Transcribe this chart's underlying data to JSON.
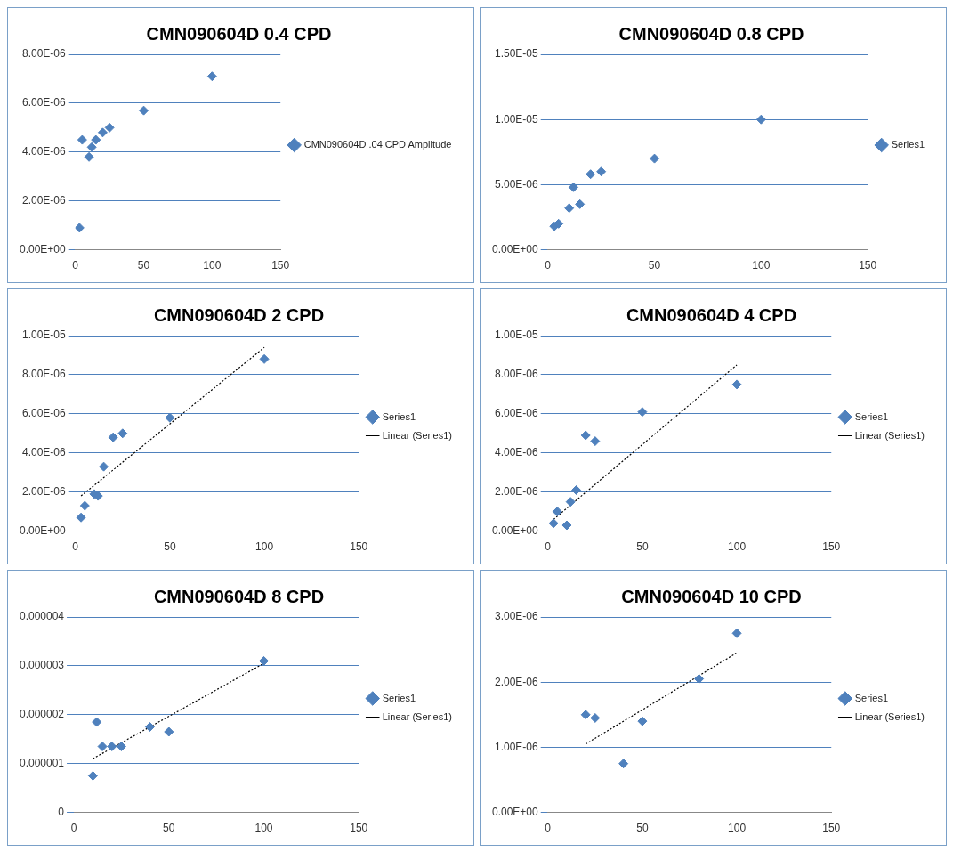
{
  "chart_data": [
    {
      "type": "scatter",
      "title": "CMN090604D 0.4 CPD",
      "marker": "diamond",
      "grid": "y",
      "legend": "right",
      "xlim": [
        0,
        150
      ],
      "xticks": [
        0,
        50,
        100,
        150
      ],
      "ylim": [
        0,
        8e-06
      ],
      "yticks": [
        {
          "value": 0,
          "label": "0.00E+00"
        },
        {
          "value": 2e-06,
          "label": "2.00E-06"
        },
        {
          "value": 4e-06,
          "label": "4.00E-06"
        },
        {
          "value": 6e-06,
          "label": "6.00E-06"
        },
        {
          "value": 8e-06,
          "label": "8.00E-06"
        }
      ],
      "series": [
        {
          "name": "CMN090604D .04 CPD Amplitude",
          "color": "#4f81bd",
          "x": [
            3,
            5,
            10,
            12,
            15,
            20,
            25,
            50,
            100
          ],
          "values": [
            9e-07,
            4.5e-06,
            3.8e-06,
            4.2e-06,
            4.5e-06,
            4.8e-06,
            5e-06,
            5.7e-06,
            7.1e-06
          ]
        }
      ]
    },
    {
      "type": "scatter",
      "title": "CMN090604D 0.8 CPD",
      "marker": "diamond",
      "grid": "y",
      "legend": "right",
      "xlim": [
        0,
        150
      ],
      "xticks": [
        0,
        50,
        100,
        150
      ],
      "ylim": [
        0,
        1.5e-05
      ],
      "yticks": [
        {
          "value": 0,
          "label": "0.00E+00"
        },
        {
          "value": 5e-06,
          "label": "5.00E-06"
        },
        {
          "value": 1e-05,
          "label": "1.00E-05"
        },
        {
          "value": 1.5e-05,
          "label": "1.50E-05"
        }
      ],
      "series": [
        {
          "name": "Series1",
          "color": "#4f81bd",
          "x": [
            3,
            5,
            10,
            12,
            15,
            20,
            25,
            50,
            100
          ],
          "values": [
            1.8e-06,
            2e-06,
            3.2e-06,
            4.8e-06,
            3.5e-06,
            5.8e-06,
            6e-06,
            7e-06,
            1e-05
          ]
        }
      ]
    },
    {
      "type": "scatter",
      "title": "CMN090604D 2 CPD",
      "marker": "diamond",
      "grid": "y",
      "legend": "right",
      "xlim": [
        0,
        150
      ],
      "xticks": [
        0,
        50,
        100,
        150
      ],
      "ylim": [
        0,
        1e-05
      ],
      "yticks": [
        {
          "value": 0,
          "label": "0.00E+00"
        },
        {
          "value": 2e-06,
          "label": "2.00E-06"
        },
        {
          "value": 4e-06,
          "label": "4.00E-06"
        },
        {
          "value": 6e-06,
          "label": "6.00E-06"
        },
        {
          "value": 8e-06,
          "label": "8.00E-06"
        },
        {
          "value": 1e-05,
          "label": "1.00E-05"
        }
      ],
      "series": [
        {
          "name": "Series1",
          "color": "#4f81bd",
          "x": [
            3,
            5,
            10,
            12,
            15,
            20,
            25,
            50,
            100
          ],
          "values": [
            7e-07,
            1.3e-06,
            1.9e-06,
            1.8e-06,
            3.3e-06,
            4.8e-06,
            5e-06,
            5.8e-06,
            8.8e-06
          ]
        },
        {
          "name": "Linear (Series1)",
          "type": "line",
          "marker": "none",
          "line_style": "dotted",
          "color": "#000000",
          "x": [
            3,
            100
          ],
          "values": [
            1.8e-06,
            9.4e-06
          ]
        }
      ]
    },
    {
      "type": "scatter",
      "title": "CMN090604D 4 CPD",
      "marker": "diamond",
      "grid": "y",
      "legend": "right",
      "xlim": [
        0,
        150
      ],
      "xticks": [
        0,
        50,
        100,
        150
      ],
      "ylim": [
        0,
        1e-05
      ],
      "yticks": [
        {
          "value": 0,
          "label": "0.00E+00"
        },
        {
          "value": 2e-06,
          "label": "2.00E-06"
        },
        {
          "value": 4e-06,
          "label": "4.00E-06"
        },
        {
          "value": 6e-06,
          "label": "6.00E-06"
        },
        {
          "value": 8e-06,
          "label": "8.00E-06"
        },
        {
          "value": 1e-05,
          "label": "1.00E-05"
        }
      ],
      "series": [
        {
          "name": "Series1",
          "color": "#4f81bd",
          "x": [
            3,
            5,
            10,
            12,
            15,
            20,
            25,
            50,
            100
          ],
          "values": [
            4e-07,
            1e-06,
            3e-07,
            1.5e-06,
            2.1e-06,
            4.9e-06,
            4.6e-06,
            6.1e-06,
            7.5e-06
          ]
        },
        {
          "name": "Linear (Series1)",
          "type": "line",
          "marker": "none",
          "line_style": "dotted",
          "color": "#000000",
          "x": [
            3,
            100
          ],
          "values": [
            6e-07,
            8.5e-06
          ]
        }
      ]
    },
    {
      "type": "scatter",
      "title": "CMN090604D 8 CPD",
      "marker": "diamond",
      "grid": "y",
      "legend": "right",
      "xlim": [
        0,
        150
      ],
      "xticks": [
        0,
        50,
        100,
        150
      ],
      "ylim": [
        0,
        4e-06
      ],
      "yticks": [
        {
          "value": 0,
          "label": "0"
        },
        {
          "value": 1e-06,
          "label": "0.000001"
        },
        {
          "value": 2e-06,
          "label": "0.000002"
        },
        {
          "value": 3e-06,
          "label": "0.000003"
        },
        {
          "value": 4e-06,
          "label": "0.000004"
        }
      ],
      "series": [
        {
          "name": "Series1",
          "color": "#4f81bd",
          "x": [
            10,
            12,
            15,
            20,
            25,
            40,
            50,
            100
          ],
          "values": [
            7.5e-07,
            1.85e-06,
            1.35e-06,
            1.35e-06,
            1.35e-06,
            1.75e-06,
            1.65e-06,
            3.1e-06
          ]
        },
        {
          "name": "Linear (Series1)",
          "type": "line",
          "marker": "none",
          "line_style": "dotted",
          "color": "#000000",
          "x": [
            10,
            100
          ],
          "values": [
            1.1e-06,
            3.05e-06
          ]
        }
      ]
    },
    {
      "type": "scatter",
      "title": "CMN090604D 10 CPD",
      "marker": "diamond",
      "grid": "y",
      "legend": "right",
      "xlim": [
        0,
        150
      ],
      "xticks": [
        0,
        50,
        100,
        150
      ],
      "ylim": [
        0,
        3e-06
      ],
      "yticks": [
        {
          "value": 0,
          "label": "0.00E+00"
        },
        {
          "value": 1e-06,
          "label": "1.00E-06"
        },
        {
          "value": 2e-06,
          "label": "2.00E-06"
        },
        {
          "value": 3e-06,
          "label": "3.00E-06"
        }
      ],
      "series": [
        {
          "name": "Series1",
          "color": "#4f81bd",
          "x": [
            20,
            25,
            40,
            50,
            80,
            100
          ],
          "values": [
            1.5e-06,
            1.45e-06,
            7.5e-07,
            1.4e-06,
            2.05e-06,
            2.75e-06
          ]
        },
        {
          "name": "Linear (Series1)",
          "type": "line",
          "marker": "none",
          "line_style": "dotted",
          "color": "#000000",
          "x": [
            20,
            100
          ],
          "values": [
            1.05e-06,
            2.45e-06
          ]
        }
      ]
    }
  ]
}
